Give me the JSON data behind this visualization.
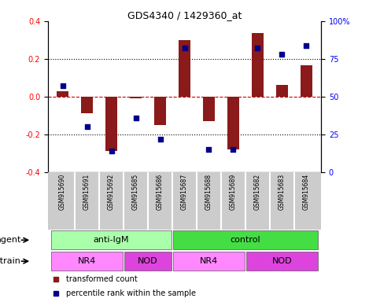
{
  "title": "GDS4340 / 1429360_at",
  "samples": [
    "GSM915690",
    "GSM915691",
    "GSM915692",
    "GSM915685",
    "GSM915686",
    "GSM915687",
    "GSM915688",
    "GSM915689",
    "GSM915682",
    "GSM915683",
    "GSM915684"
  ],
  "bar_values": [
    0.03,
    -0.09,
    -0.29,
    -0.01,
    -0.15,
    0.3,
    -0.13,
    -0.28,
    0.335,
    0.06,
    0.165
  ],
  "dot_values": [
    57,
    30,
    14,
    36,
    22,
    82,
    15,
    15,
    82,
    78,
    84
  ],
  "bar_color": "#8B1A1A",
  "dot_color": "#00008B",
  "ylim_left": [
    -0.4,
    0.4
  ],
  "ylim_right": [
    0,
    100
  ],
  "yticks_left": [
    -0.4,
    -0.2,
    0.0,
    0.2,
    0.4
  ],
  "yticks_right": [
    0,
    25,
    50,
    75,
    100
  ],
  "ytick_labels_right": [
    "0",
    "25",
    "50",
    "75",
    "100%"
  ],
  "agent_groups": [
    {
      "label": "anti-IgM",
      "start": 0,
      "end": 5,
      "color": "#AAFFAA"
    },
    {
      "label": "control",
      "start": 5,
      "end": 11,
      "color": "#44DD44"
    }
  ],
  "strain_groups": [
    {
      "label": "NR4",
      "start": 0,
      "end": 3,
      "color": "#FF88FF"
    },
    {
      "label": "NOD",
      "start": 3,
      "end": 5,
      "color": "#DD44DD"
    },
    {
      "label": "NR4",
      "start": 5,
      "end": 8,
      "color": "#FF88FF"
    },
    {
      "label": "NOD",
      "start": 8,
      "end": 11,
      "color": "#DD44DD"
    }
  ],
  "legend_bar_label": "transformed count",
  "legend_dot_label": "percentile rank within the sample",
  "xlabel_agent": "agent",
  "xlabel_strain": "strain",
  "bg_color": "#FFFFFF",
  "sample_box_color": "#CCCCCC",
  "bar_width": 0.5,
  "dot_size": 22
}
